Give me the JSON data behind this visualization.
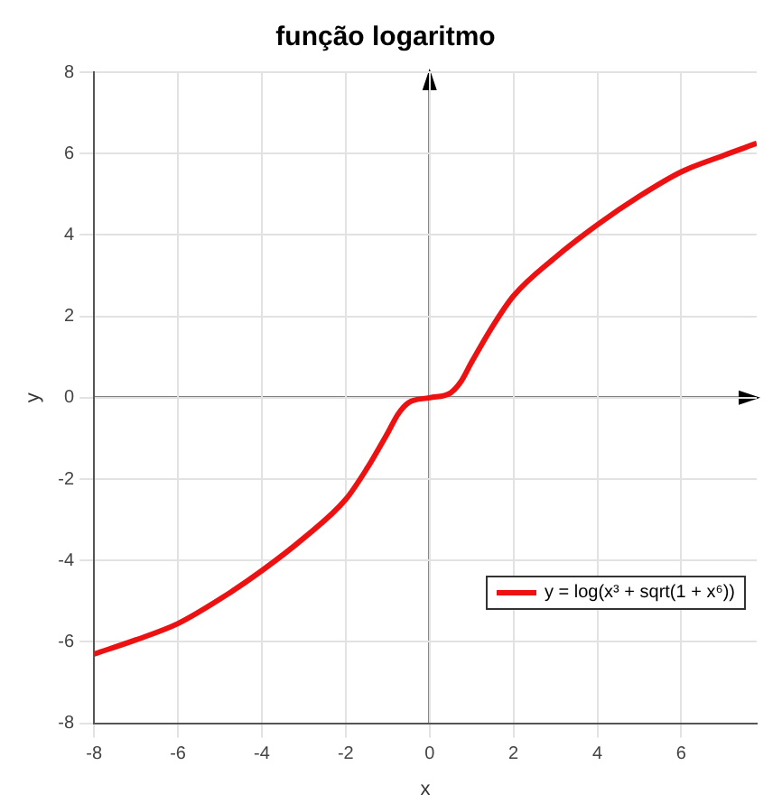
{
  "chart_data": {
    "type": "line",
    "title": "função logaritmo",
    "xlabel": "x",
    "ylabel": "y",
    "xlim": [
      -8,
      7.8
    ],
    "xticks": [
      -8,
      -6,
      -4,
      -2,
      0,
      2,
      4,
      6
    ],
    "ylim": [
      -8,
      8
    ],
    "yticks": [
      -8,
      -6,
      -4,
      -2,
      0,
      2,
      4,
      6,
      8
    ],
    "grid": true,
    "legend": "bottom right",
    "marker": "none",
    "line_style": "solid",
    "series": [
      {
        "name": "y = log(x³ + sqrt(1 + x⁶))",
        "color": "#ee1111",
        "x": [
          -8,
          -7,
          -6,
          -5,
          -4,
          -3,
          -2,
          -1.5,
          -1,
          -0.75,
          -0.5,
          0,
          0.5,
          0.75,
          1,
          1.5,
          2,
          3,
          4,
          5,
          6,
          7,
          7.8
        ],
        "values": [
          -6.3,
          -5.95,
          -5.55,
          -4.95,
          -4.25,
          -3.45,
          -2.5,
          -1.75,
          -0.87,
          -0.4,
          -0.12,
          0,
          0.12,
          0.4,
          0.87,
          1.75,
          2.5,
          3.45,
          4.25,
          4.95,
          5.55,
          5.95,
          6.25
        ]
      }
    ]
  }
}
